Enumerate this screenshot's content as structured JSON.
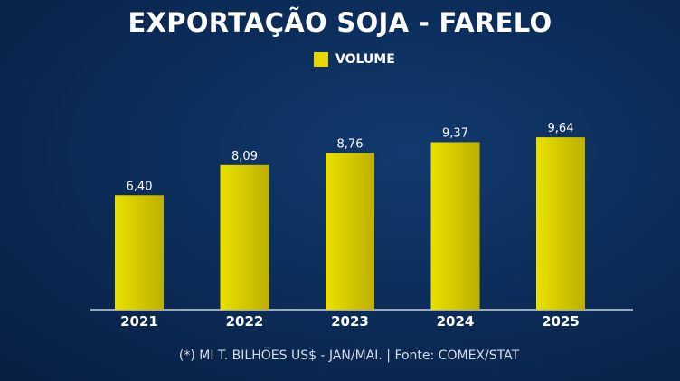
{
  "chart_data": {
    "type": "bar",
    "title": "EXPORTAÇÃO SOJA - FARELO",
    "legend": [
      {
        "label": "VOLUME",
        "color": "#e3d800"
      }
    ],
    "legend_position": "top-center",
    "categories": [
      "2021",
      "2022",
      "2023",
      "2024",
      "2025"
    ],
    "values": [
      6.4,
      8.09,
      8.76,
      9.37,
      9.64
    ],
    "value_labels": [
      "6,40",
      "8,09",
      "8,76",
      "9,37",
      "9,64"
    ],
    "xlabel": "",
    "ylabel": "",
    "ylim": [
      0,
      10
    ],
    "grid": false,
    "bar_color": "#e3d800"
  },
  "footer": "(*) MI T. BILHÕES US$ - JAN/MAI. | Fonte: COMEX/STAT"
}
